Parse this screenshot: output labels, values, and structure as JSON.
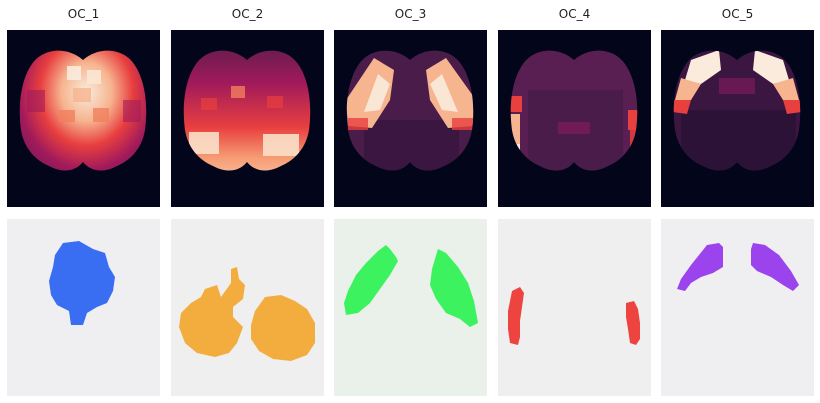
{
  "figure": {
    "columns": [
      {
        "title": "OC_1",
        "mask_color": "#3a6ef2",
        "mask_bg": "#efeff2"
      },
      {
        "title": "OC_2",
        "mask_color": "#f3ad3f",
        "mask_bg": "#f0efef"
      },
      {
        "title": "OC_3",
        "mask_color": "#3cf25e",
        "mask_bg": "#eaf0ea"
      },
      {
        "title": "OC_4",
        "mask_color": "#ee4440",
        "mask_bg": "#f0efef"
      },
      {
        "title": "OC_5",
        "mask_color": "#9b44ee",
        "mask_bg": "#efeff2"
      }
    ],
    "colormap": [
      "#03051a",
      "#4c1d4b",
      "#a11a5b",
      "#e83f3f",
      "#f69c73",
      "#faebdd"
    ],
    "background_color": "#03051a"
  }
}
